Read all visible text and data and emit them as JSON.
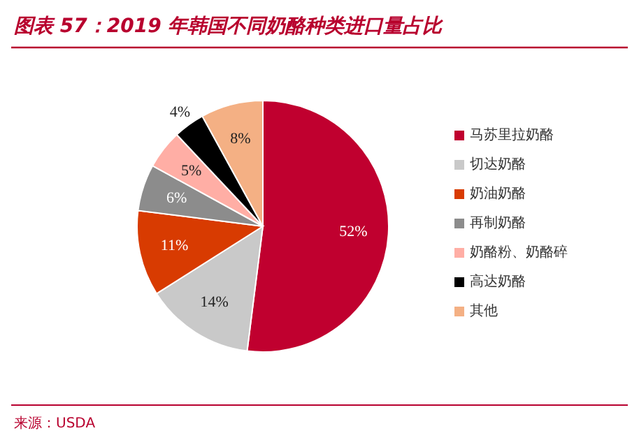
{
  "chart_data": {
    "type": "pie",
    "title": "图表 57：2019 年韩国不同奶酪种类进口量占比",
    "categories": [
      "马苏里拉奶酪",
      "切达奶酪",
      "奶油奶酪",
      "再制奶酪",
      "奶酪粉、奶酪碎",
      "高达奶酪",
      "其他"
    ],
    "values": [
      52,
      14,
      11,
      6,
      5,
      4,
      8
    ],
    "colors": [
      "#c0002f",
      "#c9c9c9",
      "#d83b01",
      "#8c8c8c",
      "#ffaea5",
      "#000000",
      "#f4b084"
    ],
    "value_labels": [
      "52%",
      "14%",
      "11%",
      "6%",
      "5%",
      "4%",
      "8%"
    ],
    "legend": "right",
    "annotations": [
      "来源：USDA"
    ]
  }
}
